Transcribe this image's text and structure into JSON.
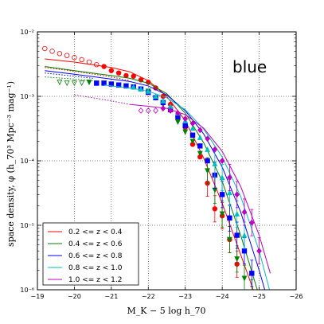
{
  "chart_data": {
    "type": "scatter",
    "panel_label": "blue",
    "xlabel": "M_K − 5 log h_70",
    "ylabel": "space density, φ (h_70³ Mpc⁻³ mag⁻¹)",
    "xlim": [
      -19,
      -26
    ],
    "ylim_log10": [
      -6,
      -2
    ],
    "y_scale": "log",
    "grid": true,
    "legend_position": "lower-left",
    "x_ticks": [
      "−19",
      "−20",
      "−21",
      "−22",
      "−23",
      "−24",
      "−25",
      "−26"
    ],
    "y_ticks": [
      "10⁻⁶",
      "10⁻⁵",
      "10⁻⁴",
      "10⁻³",
      "10⁻²"
    ],
    "series": [
      {
        "name": "0.2 <= z < 0.4",
        "color": "#ff0000",
        "line": [
          [
            -19.2,
            0.0038
          ],
          [
            -20,
            0.0034
          ],
          [
            -21,
            0.0028
          ],
          [
            -21.5,
            0.0024
          ],
          [
            -22,
            0.00175
          ],
          [
            -22.5,
            0.001
          ],
          [
            -23,
            0.00042
          ],
          [
            -23.5,
            0.00011
          ],
          [
            -24,
            2.2e-05
          ],
          [
            -24.5,
            3.5e-06
          ],
          [
            -24.9,
            8e-07
          ]
        ],
        "dotted": [
          [
            -19.2,
            0.0028
          ],
          [
            -20,
            0.00245
          ],
          [
            -21,
            0.002
          ],
          [
            -21.5,
            0.00175
          ]
        ],
        "open_points": [
          [
            -19.2,
            0.0055
          ],
          [
            -19.4,
            0.005
          ],
          [
            -19.6,
            0.0046
          ],
          [
            -19.8,
            0.0043
          ],
          [
            -20,
            0.004
          ],
          [
            -20.2,
            0.0037
          ],
          [
            -20.4,
            0.0034
          ],
          [
            -20.6,
            0.0031
          ]
        ],
        "points": [
          [
            -20.8,
            0.0029
          ],
          [
            -21.0,
            0.0025
          ],
          [
            -21.2,
            0.0023
          ],
          [
            -21.4,
            0.0021
          ],
          [
            -21.6,
            0.00205
          ],
          [
            -21.8,
            0.0018
          ],
          [
            -22.0,
            0.00165
          ],
          [
            -22.2,
            0.00135
          ],
          [
            -22.4,
            0.001
          ],
          [
            -22.6,
            0.00075
          ],
          [
            -22.8,
            0.00048
          ],
          [
            -23.0,
            0.00033
          ],
          [
            -23.2,
            0.00018
          ],
          [
            -23.4,
            0.000115
          ],
          [
            -23.6,
            4.5e-05
          ],
          [
            -23.8,
            1.8e-05
          ],
          [
            -24.0,
            1.4e-05
          ],
          [
            -24.2,
            6e-06
          ],
          [
            -24.4,
            2.5e-06
          ]
        ]
      },
      {
        "name": "0.4 <= z < 0.6",
        "color": "#008000",
        "line": [
          [
            -19.2,
            0.0029
          ],
          [
            -20,
            0.0025
          ],
          [
            -21,
            0.0021
          ],
          [
            -21.5,
            0.0019
          ],
          [
            -22,
            0.0016
          ],
          [
            -22.5,
            0.0011
          ],
          [
            -23,
            0.00055
          ],
          [
            -23.5,
            0.00019
          ],
          [
            -24,
            4.8e-05
          ],
          [
            -24.5,
            7e-06
          ],
          [
            -25,
            8e-07
          ]
        ],
        "dotted": [
          [
            -19.2,
            0.002
          ],
          [
            -20,
            0.00185
          ],
          [
            -20.5,
            0.00175
          ]
        ],
        "open_points": [
          [
            -19.6,
            0.00165
          ],
          [
            -19.8,
            0.0016
          ],
          [
            -20.0,
            0.0016
          ],
          [
            -20.2,
            0.0016
          ]
        ],
        "points": [
          [
            -20.4,
            0.00165
          ],
          [
            -20.6,
            0.0016
          ],
          [
            -20.8,
            0.0016
          ],
          [
            -21.0,
            0.00155
          ],
          [
            -21.2,
            0.0015
          ],
          [
            -21.4,
            0.00145
          ],
          [
            -21.6,
            0.0014
          ],
          [
            -21.8,
            0.0013
          ],
          [
            -22.0,
            0.0012
          ],
          [
            -22.2,
            0.00095
          ],
          [
            -22.4,
            0.00075
          ],
          [
            -22.6,
            0.0006
          ],
          [
            -22.8,
            0.0004
          ],
          [
            -23.0,
            0.00028
          ],
          [
            -23.2,
            0.0002
          ],
          [
            -23.4,
            0.00013
          ],
          [
            -23.6,
            7e-05
          ],
          [
            -23.8,
            3.5e-05
          ],
          [
            -24.0,
            1.5e-05
          ],
          [
            -24.2,
            6e-06
          ],
          [
            -24.4,
            3e-06
          ],
          [
            -24.6,
            1.5e-06
          ],
          [
            -24.8,
            9e-07
          ]
        ]
      },
      {
        "name": "0.6 <= z < 0.8",
        "color": "#0000ff",
        "line": [
          [
            -19.2,
            0.0025
          ],
          [
            -20,
            0.0022
          ],
          [
            -21,
            0.00185
          ],
          [
            -21.5,
            0.0017
          ],
          [
            -22,
            0.00145
          ],
          [
            -22.5,
            0.00105
          ],
          [
            -23,
            0.0006
          ],
          [
            -23.5,
            0.00026
          ],
          [
            -24,
            8e-05
          ],
          [
            -24.5,
            1.6e-05
          ],
          [
            -25,
            2e-06
          ],
          [
            -25.2,
            8e-07
          ]
        ],
        "dotted": [
          [
            -19.2,
            0.0023
          ],
          [
            -20,
            0.00205
          ],
          [
            -20.5,
            0.0019
          ]
        ],
        "open_points": [],
        "points": [
          [
            -20.6,
            0.0016
          ],
          [
            -20.8,
            0.0016
          ],
          [
            -21.0,
            0.00155
          ],
          [
            -21.2,
            0.0015
          ],
          [
            -21.4,
            0.00145
          ],
          [
            -21.6,
            0.0014
          ],
          [
            -21.8,
            0.0013
          ],
          [
            -22.0,
            0.00115
          ],
          [
            -22.2,
            0.00095
          ],
          [
            -22.4,
            0.0008
          ],
          [
            -22.6,
            0.00062
          ],
          [
            -22.8,
            0.00048
          ],
          [
            -23.0,
            0.00035
          ],
          [
            -23.2,
            0.00025
          ],
          [
            -23.4,
            0.00017
          ],
          [
            -23.6,
            0.0001
          ],
          [
            -23.8,
            6e-05
          ],
          [
            -24.0,
            3e-05
          ],
          [
            -24.2,
            1.3e-05
          ],
          [
            -24.4,
            7e-06
          ],
          [
            -24.6,
            4e-06
          ],
          [
            -24.8,
            1.8e-06
          ]
        ]
      },
      {
        "name": "0.8 <= z < 1.0",
        "color": "#00bfbf",
        "line": [
          [
            -20.8,
            0.0015
          ],
          [
            -21.5,
            0.00135
          ],
          [
            -22,
            0.0012
          ],
          [
            -22.5,
            0.00095
          ],
          [
            -23,
            0.00062
          ],
          [
            -23.5,
            0.00031
          ],
          [
            -24,
            0.000115
          ],
          [
            -24.5,
            2.8e-05
          ],
          [
            -25,
            4e-06
          ],
          [
            -25.3,
            9e-07
          ]
        ],
        "dotted": [],
        "open_points": [],
        "points": [
          [
            -21.6,
            0.0014
          ],
          [
            -21.8,
            0.0013
          ],
          [
            -22.0,
            0.0012
          ],
          [
            -22.2,
            0.001
          ],
          [
            -22.4,
            0.00085
          ],
          [
            -22.6,
            0.0007
          ],
          [
            -22.8,
            0.00055
          ],
          [
            -23.0,
            0.00042
          ],
          [
            -23.2,
            0.00032
          ],
          [
            -23.4,
            0.00023
          ],
          [
            -23.6,
            0.00015
          ],
          [
            -23.8,
            9e-05
          ],
          [
            -24.0,
            5.5e-05
          ],
          [
            -24.2,
            3.2e-05
          ],
          [
            -24.4,
            1.5e-05
          ],
          [
            -24.6,
            7e-06
          ]
        ]
      },
      {
        "name": "1.0 <= z < 1.2",
        "color": "#bf00bf",
        "line": [
          [
            -21.5,
            0.00075
          ],
          [
            -22,
            0.0007
          ],
          [
            -22.5,
            0.00065
          ],
          [
            -23,
            0.00052
          ],
          [
            -23.5,
            0.00032
          ],
          [
            -24,
            0.00014
          ],
          [
            -24.5,
            4e-05
          ],
          [
            -25,
            7e-06
          ],
          [
            -25.3,
            1.8e-06
          ]
        ],
        "dotted": [
          [
            -20,
            0.00105
          ],
          [
            -20.5,
            0.00095
          ],
          [
            -21,
            0.00085
          ],
          [
            -21.5,
            0.00075
          ]
        ],
        "open_points": [
          [
            -21.8,
            0.0006
          ],
          [
            -22.0,
            0.0006
          ],
          [
            -22.2,
            0.0006
          ]
        ],
        "points": [
          [
            -22.4,
            0.00065
          ],
          [
            -22.6,
            0.0006
          ],
          [
            -22.8,
            0.00055
          ],
          [
            -23.0,
            0.00045
          ],
          [
            -23.2,
            0.00038
          ],
          [
            -23.4,
            0.0003
          ],
          [
            -23.6,
            0.00022
          ],
          [
            -23.8,
            0.00015
          ],
          [
            -24.0,
            0.0001
          ],
          [
            -24.2,
            5.5e-05
          ],
          [
            -24.4,
            3e-05
          ],
          [
            -24.6,
            1.6e-05
          ],
          [
            -24.8,
            1.1e-05
          ],
          [
            -25.0,
            4e-06
          ]
        ]
      }
    ]
  }
}
